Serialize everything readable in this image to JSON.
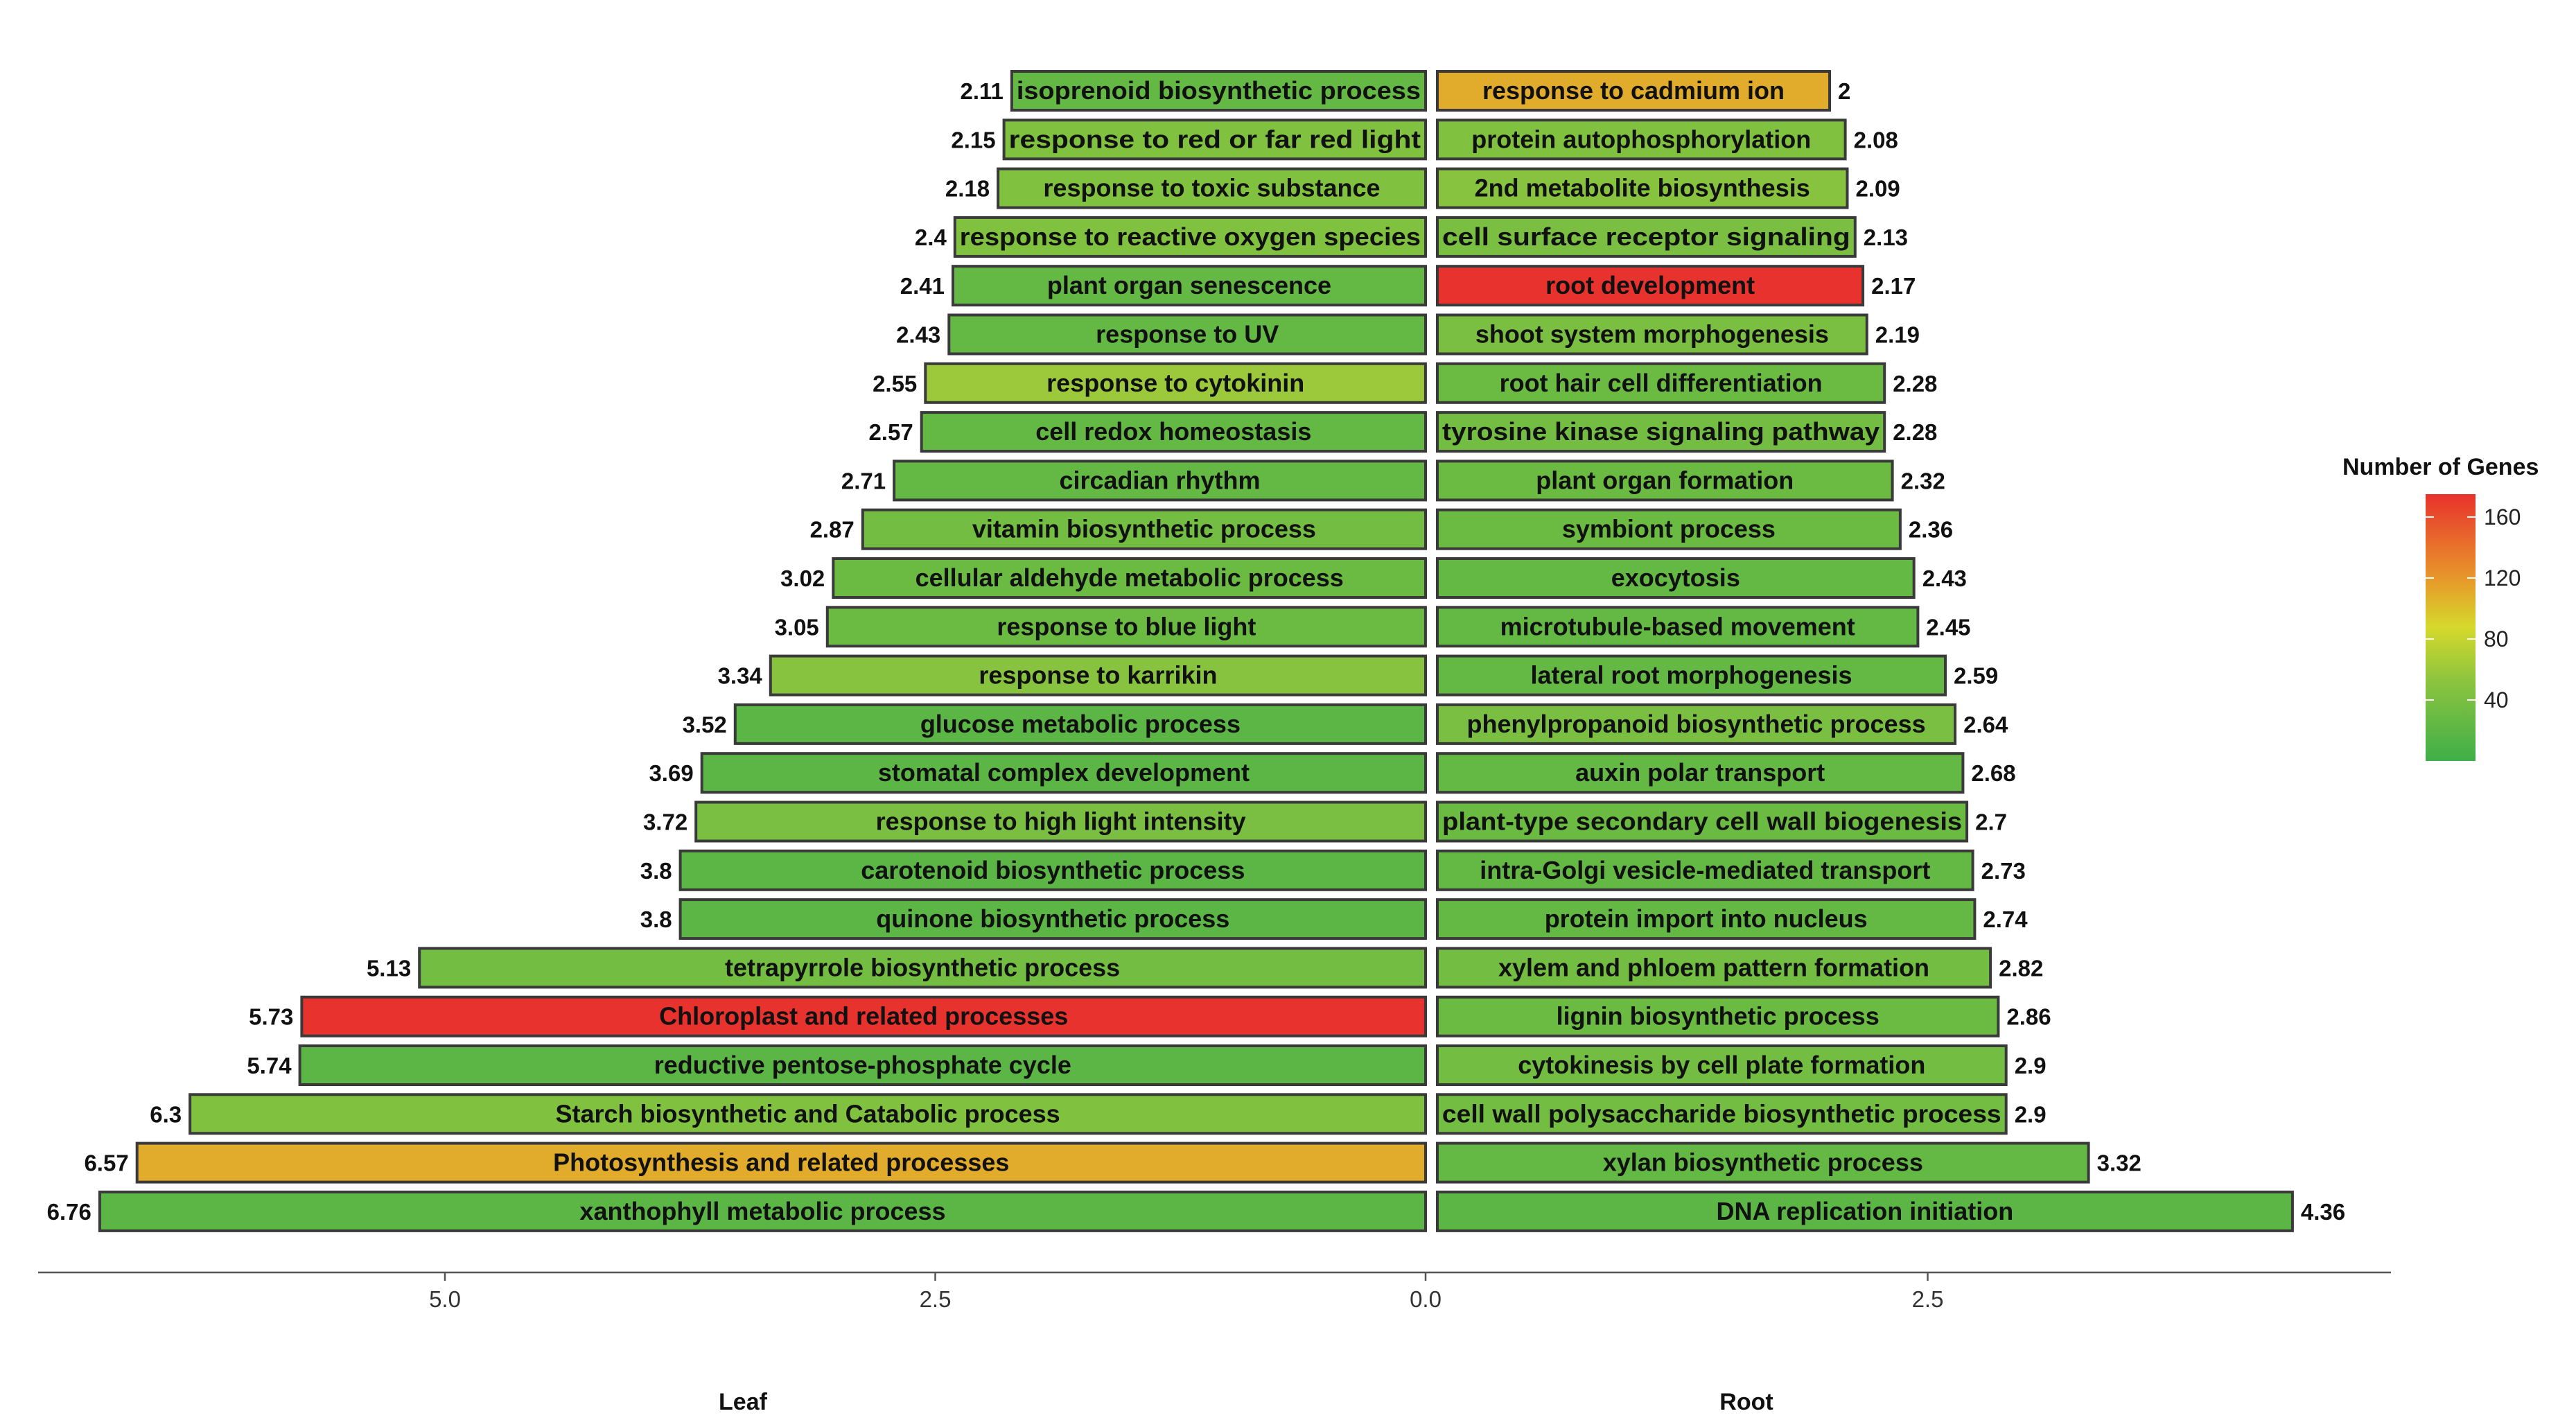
{
  "chart_data": {
    "type": "bar",
    "orientation": "horizontal-diverging",
    "xlabel_left": "Leaf",
    "xlabel_right": "Root",
    "axis_ticks": [
      "5.0",
      "2.5",
      "0.0",
      "2.5"
    ],
    "legend": {
      "title": "Number of Genes",
      "ticks": [
        "160",
        "120",
        "80",
        "40"
      ],
      "scale": [
        "#3fae49",
        "#8cc43f",
        "#d5d92c",
        "#e8922a",
        "#e8322d"
      ],
      "range": [
        0,
        175
      ]
    },
    "leaf": [
      {
        "term": "isoprenoid biosynthetic process",
        "value": 2.11,
        "label": "2.11",
        "genes": 25
      },
      {
        "term": "response to red or far red light",
        "value": 2.15,
        "label": "2.15",
        "genes": 45
      },
      {
        "term": "response to toxic substance",
        "value": 2.18,
        "label": "2.18",
        "genes": 45
      },
      {
        "term": "response to reactive oxygen species",
        "value": 2.4,
        "label": "2.4",
        "genes": 45
      },
      {
        "term": "plant organ senescence",
        "value": 2.41,
        "label": "2.41",
        "genes": 25
      },
      {
        "term": "response to UV",
        "value": 2.43,
        "label": "2.43",
        "genes": 25
      },
      {
        "term": "response to cytokinin",
        "value": 2.55,
        "label": "2.55",
        "genes": 60
      },
      {
        "term": "cell redox homeostasis",
        "value": 2.57,
        "label": "2.57",
        "genes": 25
      },
      {
        "term": "circadian rhythm",
        "value": 2.71,
        "label": "2.71",
        "genes": 25
      },
      {
        "term": "vitamin biosynthetic process",
        "value": 2.87,
        "label": "2.87",
        "genes": 35
      },
      {
        "term": "cellular aldehyde metabolic process",
        "value": 3.02,
        "label": "3.02",
        "genes": 30
      },
      {
        "term": "response to blue light",
        "value": 3.05,
        "label": "3.05",
        "genes": 30
      },
      {
        "term": "response to karrikin",
        "value": 3.34,
        "label": "3.34",
        "genes": 50
      },
      {
        "term": "glucose metabolic process",
        "value": 3.52,
        "label": "3.52",
        "genes": 20
      },
      {
        "term": "stomatal complex development",
        "value": 3.69,
        "label": "3.69",
        "genes": 20
      },
      {
        "term": "response to high light intensity",
        "value": 3.72,
        "label": "3.72",
        "genes": 40
      },
      {
        "term": "carotenoid biosynthetic process",
        "value": 3.8,
        "label": "3.8",
        "genes": 20
      },
      {
        "term": "quinone biosynthetic process",
        "value": 3.8,
        "label": "3.8",
        "genes": 20
      },
      {
        "term": "tetrapyrrole biosynthetic process",
        "value": 5.13,
        "label": "5.13",
        "genes": 35
      },
      {
        "term": "Chloroplast and related processes",
        "value": 5.73,
        "label": "5.73",
        "genes": 175
      },
      {
        "term": "reductive pentose-phosphate cycle",
        "value": 5.74,
        "label": "5.74",
        "genes": 20
      },
      {
        "term": "Starch biosynthetic and Catabolic process",
        "value": 6.3,
        "label": "6.3",
        "genes": 45
      },
      {
        "term": "Photosynthesis and related processes",
        "value": 6.57,
        "label": "6.57",
        "genes": 110
      },
      {
        "term": "xanthophyll metabolic process",
        "value": 6.76,
        "label": "6.76",
        "genes": 20
      }
    ],
    "root": [
      {
        "term": "response to cadmium ion",
        "value": 2,
        "label": "2",
        "genes": 110
      },
      {
        "term": "protein autophosphorylation",
        "value": 2.08,
        "label": "2.08",
        "genes": 45
      },
      {
        "term": "2nd metabolite biosynthesis",
        "value": 2.09,
        "label": "2.09",
        "genes": 50
      },
      {
        "term": "cell surface receptor signaling",
        "value": 2.13,
        "label": "2.13",
        "genes": 40
      },
      {
        "term": "root development",
        "value": 2.17,
        "label": "2.17",
        "genes": 175
      },
      {
        "term": "shoot system morphogenesis",
        "value": 2.19,
        "label": "2.19",
        "genes": 40
      },
      {
        "term": "root hair cell differentiation",
        "value": 2.28,
        "label": "2.28",
        "genes": 30
      },
      {
        "term": "tyrosine kinase signaling pathway",
        "value": 2.28,
        "label": "2.28",
        "genes": 35
      },
      {
        "term": "plant organ formation",
        "value": 2.32,
        "label": "2.32",
        "genes": 30
      },
      {
        "term": "symbiont process",
        "value": 2.36,
        "label": "2.36",
        "genes": 30
      },
      {
        "term": "exocytosis",
        "value": 2.43,
        "label": "2.43",
        "genes": 25
      },
      {
        "term": "microtubule-based movement",
        "value": 2.45,
        "label": "2.45",
        "genes": 25
      },
      {
        "term": "lateral root morphogenesis",
        "value": 2.59,
        "label": "2.59",
        "genes": 25
      },
      {
        "term": "phenylpropanoid biosynthetic process",
        "value": 2.64,
        "label": "2.64",
        "genes": 40
      },
      {
        "term": "auxin polar transport",
        "value": 2.68,
        "label": "2.68",
        "genes": 25
      },
      {
        "term": "plant-type secondary cell wall biogenesis",
        "value": 2.7,
        "label": "2.7",
        "genes": 30
      },
      {
        "term": "intra-Golgi vesicle-mediated transport",
        "value": 2.73,
        "label": "2.73",
        "genes": 25
      },
      {
        "term": "protein import into nucleus",
        "value": 2.74,
        "label": "2.74",
        "genes": 25
      },
      {
        "term": "xylem and phloem pattern formation",
        "value": 2.82,
        "label": "2.82",
        "genes": 35
      },
      {
        "term": "lignin biosynthetic process",
        "value": 2.86,
        "label": "2.86",
        "genes": 30
      },
      {
        "term": "cytokinesis by cell plate formation",
        "value": 2.9,
        "label": "2.9",
        "genes": 35
      },
      {
        "term": "cell wall polysaccharide biosynthetic process",
        "value": 2.9,
        "label": "2.9",
        "genes": 35
      },
      {
        "term": "xylan biosynthetic process",
        "value": 3.32,
        "label": "3.32",
        "genes": 25
      },
      {
        "term": "DNA replication initiation",
        "value": 4.36,
        "label": "4.36",
        "genes": 20
      }
    ]
  }
}
